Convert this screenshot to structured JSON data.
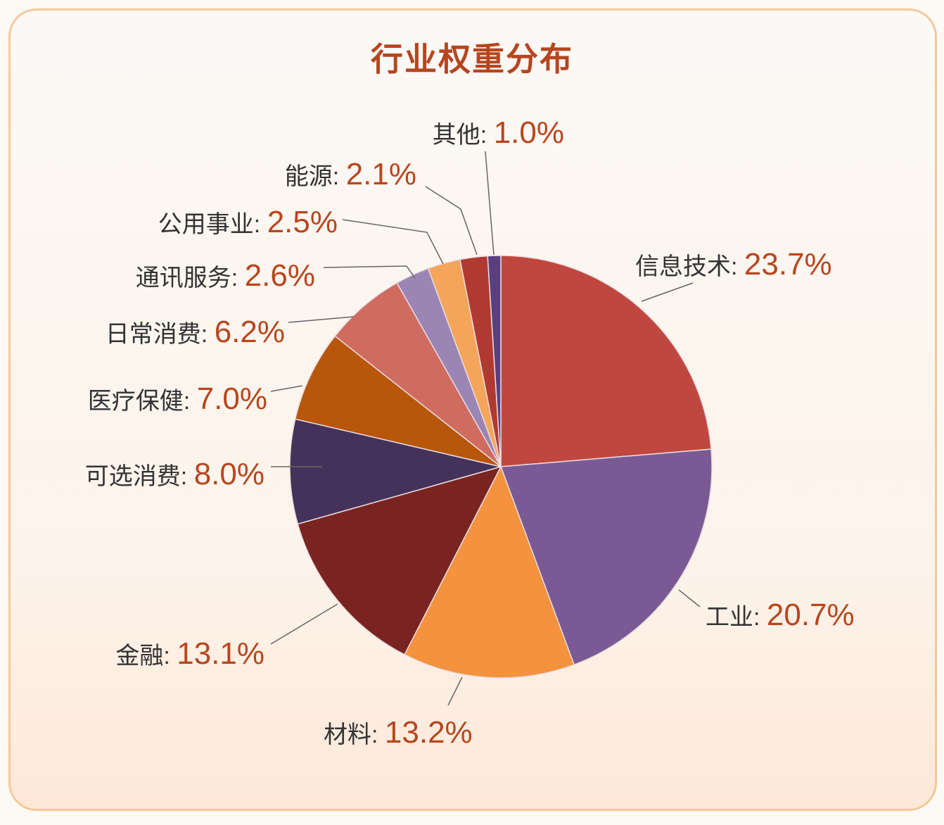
{
  "chart_data": {
    "type": "pie",
    "title": "行业权重分布",
    "start_angle": "12 o'clock",
    "direction": "clockwise",
    "slices": [
      {
        "label": "信息技术",
        "value": 23.7,
        "display": "23.7%",
        "color": "#c0473f"
      },
      {
        "label": "工业",
        "value": 20.7,
        "display": "20.7%",
        "color": "#7a5a94"
      },
      {
        "label": "材料",
        "value": 13.2,
        "display": "13.2%",
        "color": "#f5923e"
      },
      {
        "label": "金融",
        "value": 13.1,
        "display": "13.1%",
        "color": "#7a2421"
      },
      {
        "label": "可选消费",
        "value": 8.0,
        "display": "8.0%",
        "color": "#45325a"
      },
      {
        "label": "医疗保健",
        "value": 7.0,
        "display": "7.0%",
        "color": "#b8560a"
      },
      {
        "label": "日常消费",
        "value": 6.2,
        "display": "6.2%",
        "color": "#d06b60"
      },
      {
        "label": "通讯服务",
        "value": 2.6,
        "display": "2.6%",
        "color": "#9a85b5"
      },
      {
        "label": "公用事业",
        "value": 2.5,
        "display": "2.5%",
        "color": "#f5a55a"
      },
      {
        "label": "能源",
        "value": 2.1,
        "display": "2.1%",
        "color": "#b03a30"
      },
      {
        "label": "其他",
        "value": 1.0,
        "display": "1.0%",
        "color": "#5a3f80"
      }
    ],
    "label_color": "#333333",
    "value_color": "#b8461e"
  }
}
